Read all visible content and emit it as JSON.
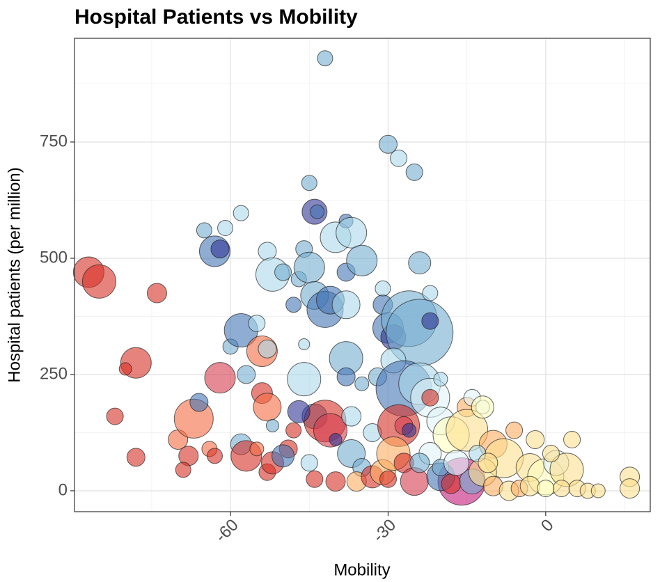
{
  "chart_data": {
    "type": "scatter",
    "title": "Hospital Patients vs Mobility",
    "x_label": "Mobility",
    "y_label": "Hospital patients (per million)",
    "xlim": [
      -89.7,
      19.9
    ],
    "ylim": [
      -45,
      973
    ],
    "xticks": [
      -60,
      -30,
      0
    ],
    "yticks": [
      0,
      250,
      500,
      750
    ],
    "x_minor_grid": [
      -75,
      -45,
      -15,
      15
    ],
    "y_minor_grid": [
      125,
      375,
      625,
      875
    ],
    "grid": true,
    "x": [
      -87,
      -85,
      -74,
      -78,
      -80,
      -82,
      -78,
      -70,
      -68,
      -69,
      -67,
      -66,
      -64,
      -63,
      -62,
      -65,
      -61,
      -63,
      -62,
      -58,
      -60,
      -58,
      -57,
      -55,
      -54,
      -53,
      -53,
      -52,
      -50,
      -54,
      -53,
      -52,
      -58,
      -57,
      -55,
      -53,
      -52,
      -49,
      -48,
      -47,
      -46,
      -45,
      -44,
      -43.5,
      -45,
      -44,
      -42,
      -41,
      -38,
      -40,
      -38,
      -37,
      -38,
      -35,
      -46,
      -46,
      -44,
      -42,
      -41,
      -40,
      -38,
      -38,
      -37,
      -37,
      -35,
      -47,
      -48,
      -50,
      -45,
      -44,
      -40,
      -36,
      -33,
      -31,
      -30,
      -33,
      -32,
      -31,
      -31,
      -30,
      -28,
      -25,
      -42,
      -30,
      -29,
      -26,
      -24,
      -24,
      -22,
      -22,
      -29,
      -27,
      -24,
      -22,
      -28,
      -27,
      -22,
      -26,
      -29,
      -27,
      -25,
      -16,
      -20,
      -18,
      -15,
      -14,
      -12,
      -15,
      -10,
      -8,
      -6,
      -2,
      -3,
      0,
      2,
      4,
      5,
      1,
      -20,
      -18,
      -14,
      -12,
      -10,
      -7,
      -5,
      -3,
      0,
      3,
      6,
      8,
      10,
      16,
      16,
      -22,
      -20,
      -17,
      -13,
      -11,
      -24,
      -35,
      -20,
      -12
    ],
    "values": [
      470,
      450,
      425,
      275,
      262,
      160,
      72,
      110,
      75,
      45,
      155,
      190,
      90,
      75,
      243,
      560,
      565,
      515,
      520,
      597,
      310,
      345,
      250,
      360,
      300,
      305,
      515,
      465,
      470,
      210,
      180,
      140,
      100,
      75,
      90,
      40,
      60,
      90,
      400,
      455,
      520,
      662,
      600,
      600,
      480,
      420,
      390,
      410,
      400,
      545,
      580,
      555,
      470,
      495,
      315,
      240,
      160,
      150,
      130,
      110,
      285,
      245,
      160,
      80,
      50,
      170,
      130,
      75,
      60,
      25,
      20,
      20,
      30,
      40,
      25,
      125,
      245,
      435,
      400,
      745,
      715,
      685,
      930,
      350,
      330,
      370,
      340,
      490,
      425,
      365,
      280,
      220,
      230,
      200,
      140,
      140,
      200,
      130,
      80,
      60,
      20,
      20,
      150,
      120,
      180,
      200,
      180,
      130,
      100,
      70,
      130,
      110,
      50,
      30,
      60,
      45,
      110,
      80,
      30,
      15,
      20,
      40,
      10,
      0,
      5,
      10,
      5,
      5,
      5,
      0,
      0,
      30,
      5,
      80,
      50,
      60,
      80,
      60,
      60,
      230,
      240,
      180
    ],
    "sizes": [
      22,
      24,
      14,
      22,
      9,
      12,
      13,
      14,
      14,
      11,
      28,
      13,
      11,
      11,
      22,
      11,
      11,
      22,
      13,
      11,
      11,
      24,
      13,
      12,
      22,
      13,
      13,
      24,
      12,
      15,
      20,
      9,
      15,
      22,
      10,
      12,
      16,
      13,
      11,
      11,
      12,
      11,
      18,
      10,
      22,
      20,
      26,
      20,
      20,
      22,
      10,
      22,
      13,
      22,
      8,
      24,
      18,
      30,
      24,
      9,
      24,
      13,
      14,
      20,
      13,
      16,
      11,
      16,
      12,
      12,
      14,
      14,
      16,
      18,
      12,
      13,
      13,
      11,
      14,
      13,
      12,
      12,
      11,
      22,
      18,
      40,
      48,
      16,
      11,
      12,
      18,
      40,
      30,
      28,
      30,
      13,
      12,
      10,
      24,
      14,
      20,
      34,
      20,
      26,
      14,
      12,
      10,
      30,
      20,
      28,
      12,
      13,
      20,
      26,
      18,
      24,
      12,
      12,
      20,
      14,
      18,
      20,
      14,
      14,
      12,
      14,
      12,
      12,
      12,
      11,
      10,
      14,
      14,
      16,
      12,
      18,
      12,
      14,
      14,
      10,
      10,
      16
    ],
    "colors": [
      "#d73027",
      "#d73027",
      "#d73027",
      "#d73027",
      "#d73027",
      "#d73027",
      "#d73027",
      "#f46d43",
      "#d73027",
      "#d73027",
      "#f46d43",
      "#4575b4",
      "#f46d43",
      "#d73027",
      "#d53e4f",
      "#74add1",
      "#abd9e9",
      "#4575b4",
      "#313695",
      "#abd9e9",
      "#74add1",
      "#4575b4",
      "#74add1",
      "#abd9e9",
      "#f46d43",
      "#abd9e9",
      "#abd9e9",
      "#abd9e9",
      "#74add1",
      "#d73027",
      "#f46d43",
      "#74add1",
      "#74add1",
      "#d73027",
      "#f46d43",
      "#d73027",
      "#d73027",
      "#d73027",
      "#4575b4",
      "#74add1",
      "#74add1",
      "#74add1",
      "#313695",
      "#4575b4",
      "#74add1",
      "#74add1",
      "#4575b4",
      "#4575b4",
      "#abd9e9",
      "#abd9e9",
      "#4575b4",
      "#abd9e9",
      "#4575b4",
      "#74add1",
      "#abd9e9",
      "#abd9e9",
      "#4575b4",
      "#d73027",
      "#d53e4f",
      "#313695",
      "#74add1",
      "#4575b4",
      "#abd9e9",
      "#74add1",
      "#74add1",
      "#313695",
      "#d73027",
      "#4575b4",
      "#abd9e9",
      "#d73027",
      "#d73027",
      "#fdae61",
      "#d73027",
      "#fdae61",
      "#d73027",
      "#abd9e9",
      "#74add1",
      "#abd9e9",
      "#4575b4",
      "#74add1",
      "#abd9e9",
      "#74add1",
      "#74add1",
      "#4575b4",
      "#313695",
      "#74add1",
      "#74add1",
      "#74add1",
      "#abd9e9",
      "#313695",
      "#abd9e9",
      "#4575b4",
      "#abd9e9",
      "#e0f3f8",
      "#d73027",
      "#d53e4f",
      "#d73027",
      "#313695",
      "#fdae61",
      "#d73027",
      "#d53e4f",
      "#c51b7d",
      "#e0f3f8",
      "#ffffbf",
      "#fdae61",
      "#e0f3f8",
      "#e0f3f8",
      "#fee090",
      "#fdae61",
      "#fee090",
      "#fdae61",
      "#fee090",
      "#fee090",
      "#ffffbf",
      "#e0f3f8",
      "#fee090",
      "#fee090",
      "#fee090",
      "#4575b4",
      "#d73027",
      "#74add1",
      "#fee090",
      "#fdae61",
      "#fee090",
      "#fdae61",
      "#fee090",
      "#ffffbf",
      "#fee090",
      "#fee090",
      "#fee090",
      "#fee090",
      "#fee090",
      "#fee090",
      "#e0f3f8",
      "#74add1",
      "#e0f3f8",
      "#abd9e9",
      "#fee090",
      "#74add1",
      "#74add1",
      "#abd9e9",
      "#ffffbf"
    ]
  }
}
